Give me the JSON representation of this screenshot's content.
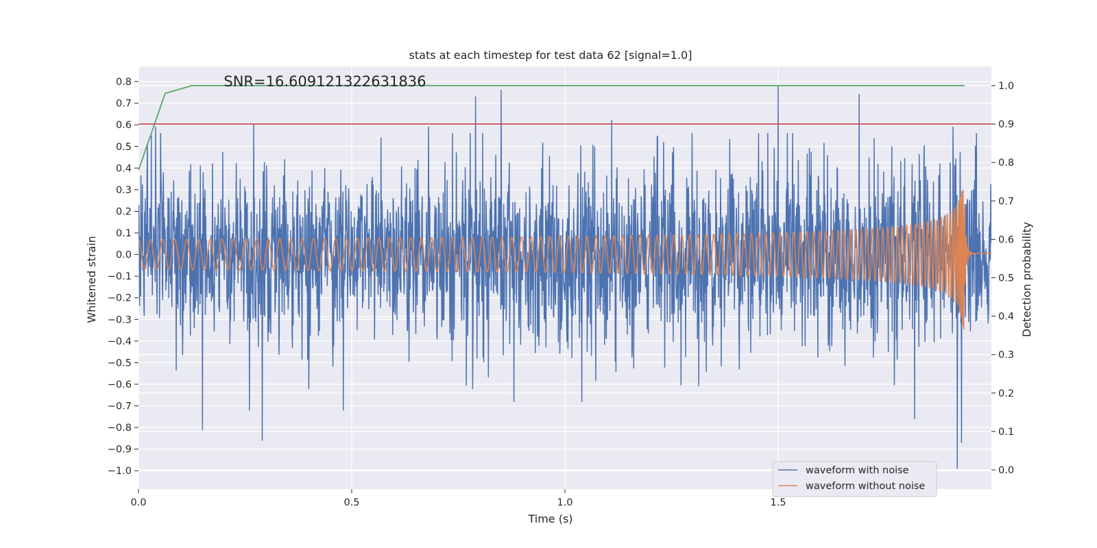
{
  "chart_data": {
    "type": "line",
    "title": "stats at each timestep for test data 62 [signal=1.0]",
    "xlabel": "Time (s)",
    "ylabel": "Whitened strain",
    "y2label": "Detection probability",
    "xlim": [
      0,
      2.0
    ],
    "ylim": [
      -1.085,
      0.87
    ],
    "y2lim": [
      -0.05,
      1.05
    ],
    "x_ticks": [
      0.0,
      0.5,
      1.0,
      1.5
    ],
    "x_tick_labels": [
      "0.0",
      "0.5",
      "1.0",
      "1.5"
    ],
    "y_ticks": [
      0.8,
      0.7,
      0.6,
      0.5,
      0.4,
      0.3,
      0.2,
      0.1,
      0.0,
      -0.1,
      -0.2,
      -0.3,
      -0.4,
      -0.5,
      -0.6,
      -0.7,
      -0.8,
      -0.9,
      -1.0
    ],
    "y_tick_labels": [
      "0.8",
      "0.7",
      "0.6",
      "0.5",
      "0.4",
      "0.3",
      "0.2",
      "0.1",
      "0.0",
      "−0.1",
      "−0.2",
      "−0.3",
      "−0.4",
      "−0.5",
      "−0.6",
      "−0.7",
      "−0.8",
      "−0.9",
      "−1.0"
    ],
    "y2_ticks": [
      1.0,
      0.9,
      0.8,
      0.7,
      0.6,
      0.5,
      0.4,
      0.3,
      0.2,
      0.1,
      0.0
    ],
    "y2_tick_labels": [
      "1.0",
      "0.9",
      "0.8",
      "0.7",
      "0.6",
      "0.5",
      "0.4",
      "0.3",
      "0.2",
      "0.1",
      "0.0"
    ],
    "annotation": "SNR=16.609121322631836",
    "annotation_pos": {
      "x": 0.2,
      "y": 0.8
    },
    "legend_placement": "lower-right",
    "grid": true,
    "series": [
      {
        "name": "waveform with noise",
        "color": "#4c72b0",
        "axis": "left",
        "style": "noise",
        "t_end": 2.0,
        "amplitude": 0.2,
        "seed": 62,
        "peaks": [
          {
            "t": 0.03,
            "v": 0.55
          },
          {
            "t": 0.04,
            "v": 0.59
          },
          {
            "t": 0.15,
            "v": -0.81
          },
          {
            "t": 0.27,
            "v": 0.6
          },
          {
            "t": 0.29,
            "v": -0.86
          },
          {
            "t": 0.26,
            "v": -0.72
          },
          {
            "t": 0.48,
            "v": -0.72
          },
          {
            "t": 0.68,
            "v": 0.59
          },
          {
            "t": 0.79,
            "v": 0.73
          },
          {
            "t": 0.85,
            "v": 0.76
          },
          {
            "t": 0.88,
            "v": -0.68
          },
          {
            "t": 1.04,
            "v": -0.68
          },
          {
            "t": 1.11,
            "v": 0.62
          },
          {
            "t": 1.5,
            "v": 0.78
          },
          {
            "t": 1.69,
            "v": 0.74
          },
          {
            "t": 1.82,
            "v": -0.76
          },
          {
            "t": 1.91,
            "v": 0.59
          },
          {
            "t": 1.92,
            "v": -0.99
          },
          {
            "t": 1.93,
            "v": -0.87
          }
        ]
      },
      {
        "name": "waveform without noise",
        "color": "#dd8452",
        "axis": "left",
        "style": "chirp",
        "t_end": 2.0,
        "merger_t": 1.935,
        "start_freq_hz": 35,
        "start_amplitude": 0.07,
        "peak_amplitude": 0.38,
        "ringdown_value": 0.005
      },
      {
        "name": "",
        "color": "#55a868",
        "axis": "right",
        "style": "line",
        "x": [
          0.0,
          0.0625,
          0.125,
          0.25,
          0.5,
          0.75,
          1.0,
          1.25,
          1.5,
          1.75,
          1.9375
        ],
        "y": [
          0.78,
          0.98,
          1.0,
          1.0,
          1.0,
          1.0,
          1.0,
          1.0,
          1.0,
          1.0,
          1.0
        ]
      },
      {
        "name": "",
        "color": "#c44e52",
        "axis": "right",
        "style": "hline",
        "y": 0.9
      }
    ]
  }
}
